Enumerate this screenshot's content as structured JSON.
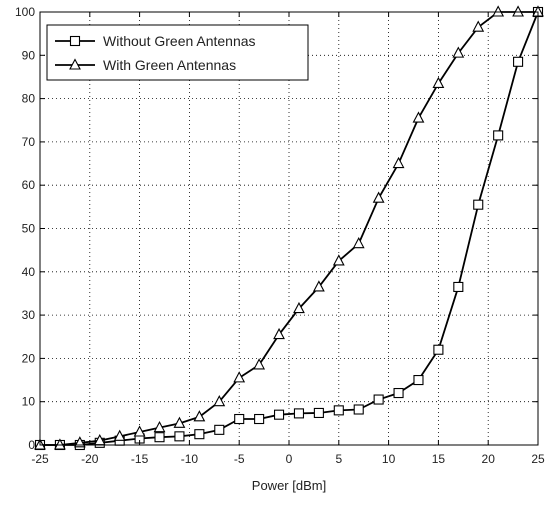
{
  "chart_data": {
    "type": "line",
    "title": "",
    "xlabel": "Power [dBm]",
    "ylabel": "",
    "xlim": [
      -25,
      25
    ],
    "ylim": [
      0,
      100
    ],
    "xticks": [
      -25,
      -20,
      -15,
      -10,
      -5,
      0,
      5,
      10,
      15,
      20,
      25
    ],
    "yticks": [
      0,
      10,
      20,
      30,
      40,
      50,
      60,
      70,
      80,
      90,
      100
    ],
    "grid": true,
    "legend_position": "top-left",
    "series": [
      {
        "name": "Without Green Antennas",
        "marker": "square",
        "color": "#000000",
        "x": [
          -25,
          -23,
          -21,
          -19,
          -17,
          -15,
          -13,
          -11,
          -9,
          -7,
          -5,
          -3,
          -1,
          1,
          3,
          5,
          7,
          9,
          11,
          13,
          15,
          17,
          19,
          21,
          23,
          25
        ],
        "y": [
          0,
          0,
          0,
          0.5,
          1,
          1.5,
          1.8,
          2,
          2.5,
          3.5,
          6,
          6,
          7,
          7.3,
          7.4,
          8,
          8.2,
          10.5,
          12,
          15,
          22,
          36.5,
          55.5,
          71.5,
          88.5,
          100
        ]
      },
      {
        "name": "With Green Antennas",
        "marker": "triangle",
        "color": "#000000",
        "x": [
          -25,
          -23,
          -21,
          -19,
          -17,
          -15,
          -13,
          -11,
          -9,
          -7,
          -5,
          -3,
          -1,
          1,
          3,
          5,
          7,
          9,
          11,
          13,
          15,
          17,
          19,
          21,
          23,
          25
        ],
        "y": [
          0,
          0,
          0.5,
          1,
          2,
          3,
          4,
          5,
          6.5,
          10,
          15.5,
          18.5,
          25.5,
          31.5,
          36.5,
          42.5,
          46.5,
          57,
          65,
          75.5,
          83.5,
          90.5,
          96.5,
          100,
          100,
          100
        ]
      }
    ]
  }
}
